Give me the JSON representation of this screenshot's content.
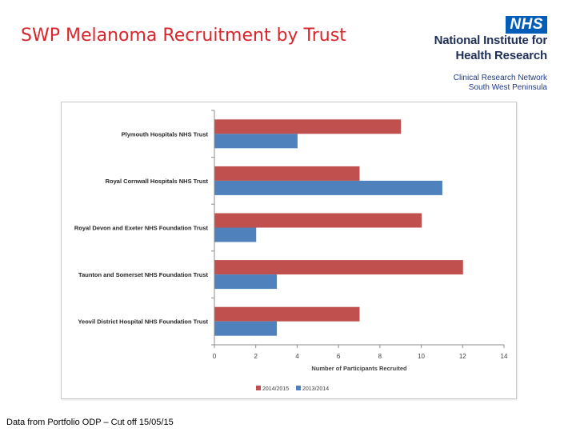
{
  "slide": {
    "title": "SWP Melanoma Recruitment by Trust",
    "footnote": "Data from Portfolio ODP – Cut off 15/05/15"
  },
  "logo": {
    "nhs": "NHS",
    "line1": "National Institute for",
    "line2": "Health Research",
    "crn1": "Clinical Research Network",
    "crn2": "South West Peninsula"
  },
  "colors": {
    "series_2014_2015": "#c0504d",
    "series_2013_2014": "#4f81bd",
    "title_red": "#d9262b",
    "nhs_blue": "#005eb8"
  },
  "chart_data": {
    "type": "bar",
    "orientation": "horizontal",
    "title": "",
    "categories": [
      "Plymouth Hospitals NHS Trust",
      "Royal Cornwall Hospitals NHS Trust",
      "Royal Devon and Exeter NHS Foundation Trust",
      "Taunton and Somerset NHS Foundation Trust",
      "Yeovil District Hospital NHS Foundation Trust"
    ],
    "series": [
      {
        "name": "2014/2015",
        "values": [
          9,
          7,
          10,
          12,
          7
        ]
      },
      {
        "name": "2013/2014",
        "values": [
          4,
          11,
          2,
          3,
          3
        ]
      }
    ],
    "xlabel": "Number of Participants Recruited",
    "ylabel": "",
    "xlim": [
      0,
      14
    ],
    "xticks": [
      0,
      2,
      4,
      6,
      8,
      10,
      12,
      14
    ],
    "grid": false,
    "legend": "bottom"
  }
}
